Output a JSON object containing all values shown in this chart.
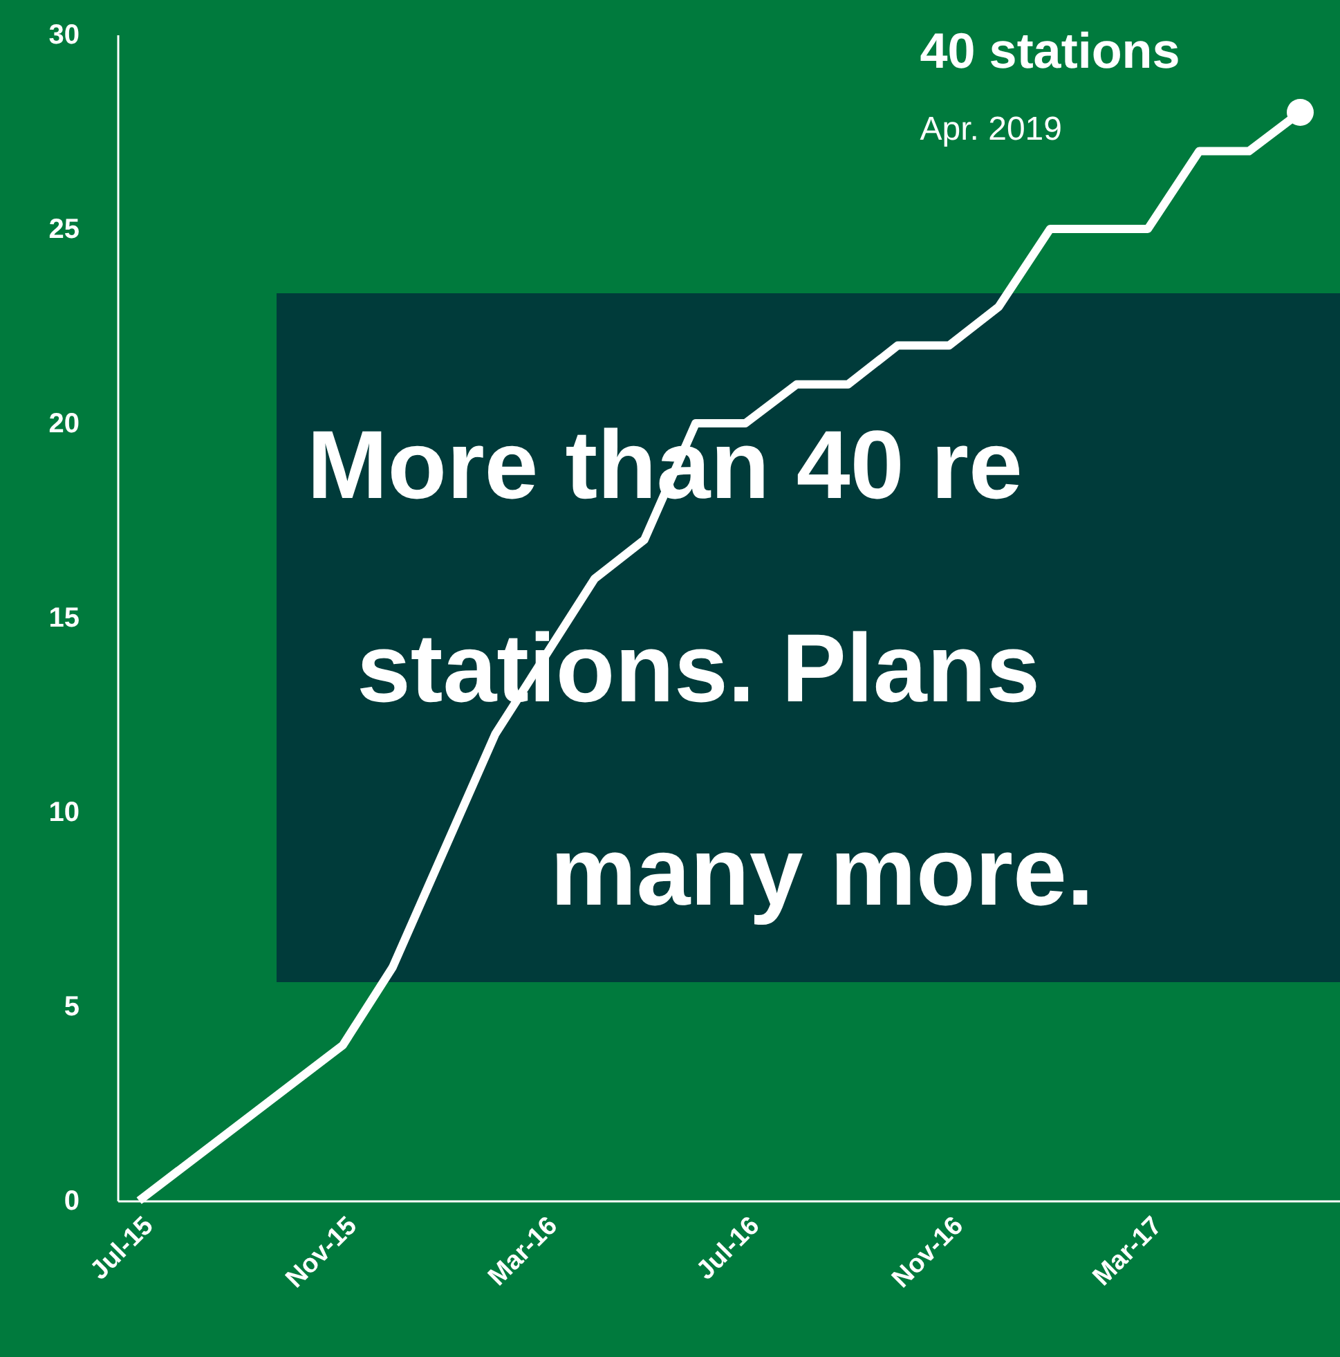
{
  "chart_data": {
    "type": "line",
    "x": [
      "2015-07",
      "2015-11",
      "2015-12",
      "2016-02",
      "2016-04",
      "2016-05",
      "2016-06",
      "2016-07",
      "2016-08",
      "2016-09",
      "2016-10",
      "2016-11",
      "2016-12",
      "2017-01",
      "2017-03",
      "2017-04",
      "2017-05",
      "2017-06"
    ],
    "series": [
      {
        "color": "#ffffff",
        "values": [
          0,
          4,
          6,
          12,
          16,
          17,
          20,
          20,
          21,
          21,
          22,
          22,
          23,
          25,
          25,
          27,
          27,
          28
        ]
      }
    ],
    "xlim": [
      "2015-06-18",
      "2017-06-25"
    ],
    "xticks": [
      {
        "value": "2015-07",
        "label": "Jul-15"
      },
      {
        "value": "2015-11",
        "label": "Nov-15"
      },
      {
        "value": "2016-03",
        "label": "Mar-16"
      },
      {
        "value": "2016-07",
        "label": "Jul-16"
      },
      {
        "value": "2016-11",
        "label": "Nov-16"
      },
      {
        "value": "2017-03",
        "label": "Mar-17"
      }
    ],
    "ylim": [
      0,
      30
    ],
    "yticks": [
      0,
      5,
      10,
      15,
      20,
      25,
      30
    ],
    "grid": false,
    "line_style": "solid",
    "marker": "none",
    "annotations": [
      {
        "text": "40 stations",
        "x": "2017-06",
        "y": 28
      },
      "Apr. 2019",
      "More than 40 re",
      "stations. Plans",
      "many more."
    ]
  }
}
